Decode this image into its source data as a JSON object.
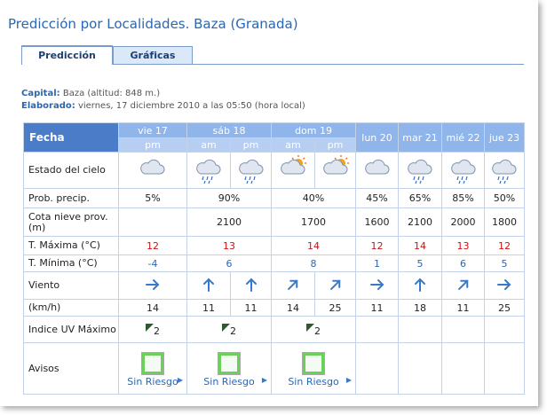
{
  "title": "Predicción por Localidades. Baza (Granada)",
  "tabs": [
    "Predicción",
    "Gráficas"
  ],
  "info": [
    {
      "label": "Capital:",
      "text": "Baza (altitud: 848 m.)"
    },
    {
      "label": "Elaborado:",
      "text": "viernes, 17 diciembre 2010 a las 05:50 (hora local)"
    }
  ],
  "table": {
    "corner": "Fecha",
    "days": [
      {
        "label": "vie 17",
        "periods": [
          "pm"
        ]
      },
      {
        "label": "sáb 18",
        "periods": [
          "am",
          "pm"
        ]
      },
      {
        "label": "dom 19",
        "periods": [
          "am",
          "pm"
        ]
      },
      {
        "label": "lun 20",
        "periods": []
      },
      {
        "label": "mar 21",
        "periods": []
      },
      {
        "label": "mié 22",
        "periods": []
      },
      {
        "label": "jue 23",
        "periods": []
      }
    ],
    "rows": [
      {
        "label": "Estado del cielo"
      },
      {
        "label": "Prob. precip.",
        "cells": [
          "5%",
          "90%",
          "40%",
          "45%",
          "65%",
          "85%",
          "50%"
        ]
      },
      {
        "label": "Cota nieve prov.(m)",
        "cells": [
          null,
          "2100",
          "1700",
          "1600",
          "2100",
          "2000",
          "1800"
        ]
      },
      {
        "label": "T. Máxima (°C)",
        "cells": [
          "12",
          "13",
          "14",
          "12",
          "14",
          "13",
          "12"
        ]
      },
      {
        "label": "T. Mínima (°C)",
        "cells": [
          "-4",
          "6",
          "8",
          "1",
          "5",
          "6",
          "5"
        ]
      },
      {
        "label": "Viento"
      },
      {
        "label": "(km/h)",
        "cells": [
          "14",
          "11",
          "11",
          "14",
          "25",
          "11",
          "18",
          "11",
          "25"
        ]
      },
      {
        "label": "Indice UV Máximo",
        "cells": [
          "2",
          "2",
          "2",
          null,
          null,
          null,
          null
        ]
      },
      {
        "label": "Avisos",
        "cells": [
          "Sin Riesgo",
          "Sin Riesgo",
          "Sin Riesgo",
          null,
          null,
          null,
          null
        ]
      }
    ]
  }
}
